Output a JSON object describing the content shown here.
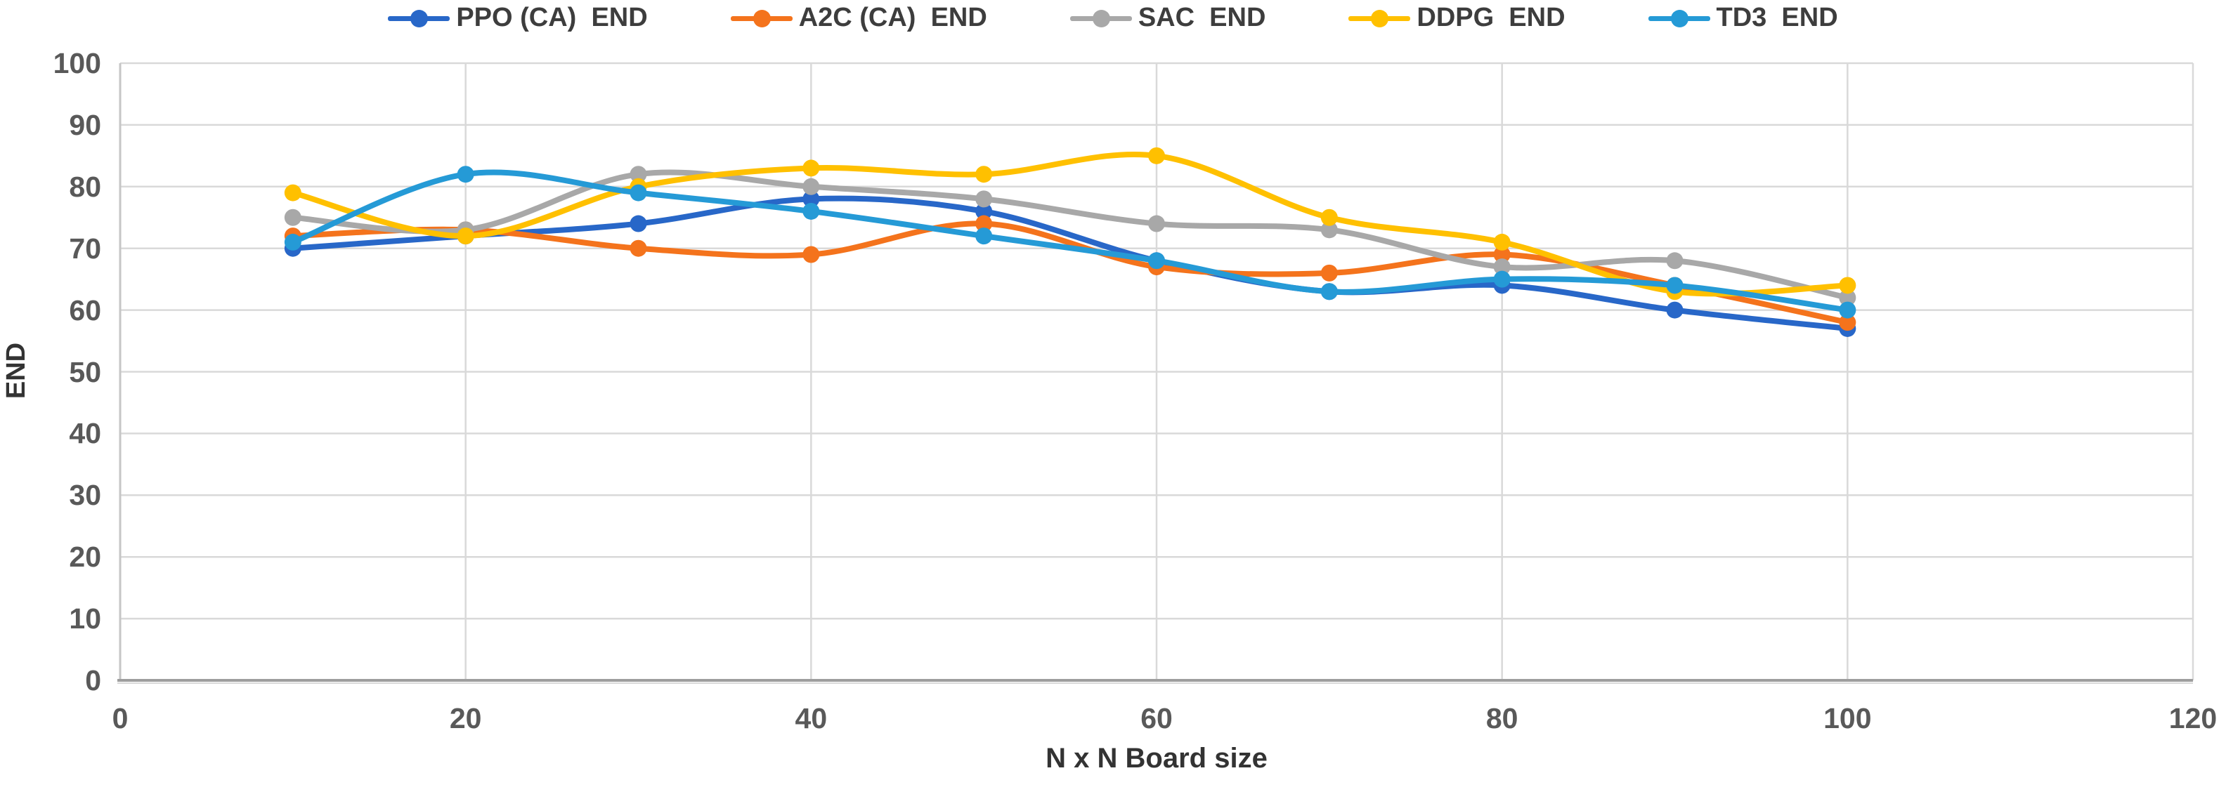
{
  "chart_data": {
    "type": "line",
    "title": "",
    "xlabel": "N x N Board size",
    "ylabel": "END",
    "xlim": [
      0,
      120
    ],
    "ylim": [
      0,
      100
    ],
    "x_ticks": [
      0,
      20,
      40,
      60,
      80,
      100,
      120
    ],
    "y_ticks": [
      0,
      10,
      20,
      30,
      40,
      50,
      60,
      70,
      80,
      90,
      100
    ],
    "grid": true,
    "smooth": true,
    "legend_position": "top",
    "x": [
      10,
      20,
      30,
      40,
      50,
      60,
      70,
      80,
      90,
      100
    ],
    "series": [
      {
        "name": "PPO (CA)  END",
        "color": "#2867C8",
        "values": [
          70,
          72,
          74,
          78,
          76,
          68,
          63,
          64,
          60,
          57
        ]
      },
      {
        "name": "A2C (CA)  END",
        "color": "#F4731C",
        "values": [
          72,
          73,
          70,
          69,
          74,
          67,
          66,
          69,
          64,
          58
        ]
      },
      {
        "name": "SAC  END",
        "color": "#A8A8A8",
        "values": [
          75,
          73,
          82,
          80,
          78,
          74,
          73,
          67,
          68,
          62
        ]
      },
      {
        "name": "DDPG  END",
        "color": "#FFC000",
        "values": [
          79,
          72,
          80,
          83,
          82,
          85,
          75,
          71,
          63,
          64
        ]
      },
      {
        "name": "TD3  END",
        "color": "#259AD6",
        "values": [
          71,
          82,
          79,
          76,
          72,
          68,
          63,
          65,
          64,
          60
        ]
      }
    ]
  },
  "colors": {
    "grid": "#D9D9D9",
    "left_axis": "#C6C6C6",
    "bottom_axis": "#9E9E9E",
    "tick_text": "#595959",
    "title_text": "#333333"
  }
}
